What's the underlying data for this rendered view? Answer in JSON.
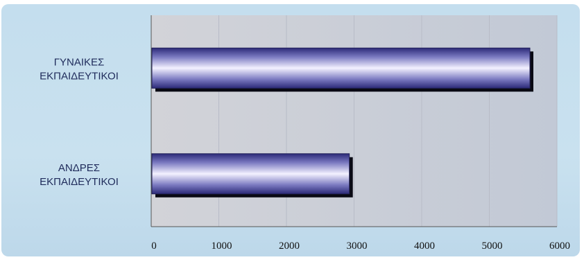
{
  "chart_data": {
    "type": "bar",
    "orientation": "horizontal",
    "categories": [
      [
        "ΓΥΝΑΙΚΕΣ",
        "ΕΚΠΑΙΔΕΥΤΙΚΟΙ"
      ],
      [
        "ΑΝΔΡΕΣ",
        "ΕΚΠΑΙΔΕΥΤΙΚΟΙ"
      ]
    ],
    "values": [
      5600,
      2930
    ],
    "xlim": [
      0,
      6000
    ],
    "x_ticks": [
      "0",
      "1000",
      "2000",
      "3000",
      "4000",
      "5000",
      "6000"
    ],
    "grid": "vertical",
    "legend": "none",
    "colors": {
      "background": "#c6dfee",
      "plot_area": "#c9cdd6",
      "bar_dark": "#2c2a78",
      "bar_light": "#f3f1ff",
      "bar_shadow": "#0a0a14"
    }
  }
}
